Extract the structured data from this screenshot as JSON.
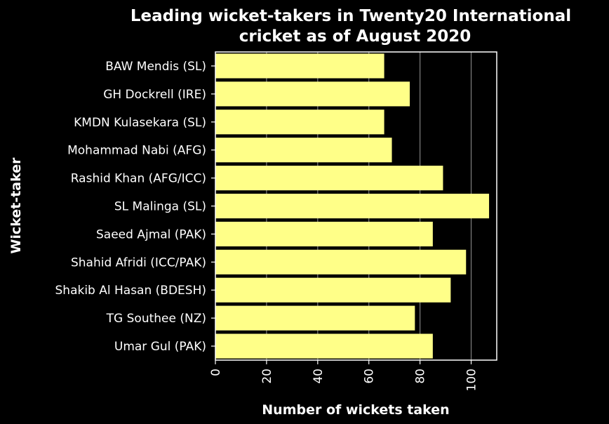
{
  "chart_data": {
    "type": "bar",
    "orientation": "horizontal",
    "title": "Leading wicket-takers in Twenty20 International cricket as of August 2020",
    "title_lines": [
      "Leading wicket-takers in Twenty20 International",
      "cricket as of August 2020"
    ],
    "xlabel": "Number of wickets taken",
    "ylabel": "Wicket-taker",
    "xlim": [
      0,
      110
    ],
    "xticks": [
      0,
      20,
      40,
      60,
      80,
      100
    ],
    "grid": "vertical",
    "categories": [
      "BAW Mendis (SL)",
      "GH Dockrell (IRE)",
      "KMDN Kulasekara (SL)",
      "Mohammad Nabi (AFG)",
      "Rashid Khan (AFG/ICC)",
      "SL Malinga (SL)",
      "Saeed Ajmal (PAK)",
      "Shahid Afridi (ICC/PAK)",
      "Shakib Al Hasan (BDESH)",
      "TG Southee (NZ)",
      "Umar Gul (PAK)"
    ],
    "values": [
      66,
      76,
      66,
      69,
      89,
      107,
      85,
      98,
      92,
      78,
      85
    ],
    "bar_color": "#ffff88",
    "background": "#000000",
    "text_color": "#ffffff",
    "grid_color": "#808080"
  }
}
